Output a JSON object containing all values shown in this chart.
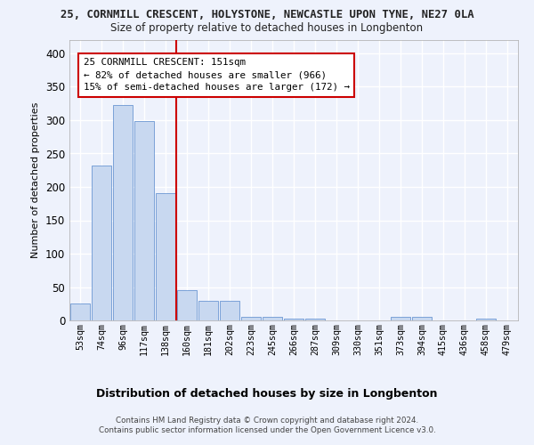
{
  "title_line1": "25, CORNMILL CRESCENT, HOLYSTONE, NEWCASTLE UPON TYNE, NE27 0LA",
  "title_line2": "Size of property relative to detached houses in Longbenton",
  "xlabel": "Distribution of detached houses by size in Longbenton",
  "ylabel": "Number of detached properties",
  "categories": [
    "53sqm",
    "74sqm",
    "96sqm",
    "117sqm",
    "138sqm",
    "160sqm",
    "181sqm",
    "202sqm",
    "223sqm",
    "245sqm",
    "266sqm",
    "287sqm",
    "309sqm",
    "330sqm",
    "351sqm",
    "373sqm",
    "394sqm",
    "415sqm",
    "436sqm",
    "458sqm",
    "479sqm"
  ],
  "values": [
    25,
    232,
    323,
    298,
    190,
    46,
    30,
    30,
    5,
    5,
    3,
    3,
    0,
    0,
    0,
    5,
    5,
    0,
    0,
    3,
    0
  ],
  "bar_color": "#c8d8f0",
  "bar_edge_color": "#5588cc",
  "vline_pos": 4.5,
  "vline_color": "#cc0000",
  "ann_line1": "25 CORNMILL CRESCENT: 151sqm",
  "ann_line2": "← 82% of detached houses are smaller (966)",
  "ann_line3": "15% of semi-detached houses are larger (172) →",
  "ann_box_fc": "#ffffff",
  "ann_box_ec": "#cc0000",
  "ylim": [
    0,
    420
  ],
  "yticks": [
    0,
    50,
    100,
    150,
    200,
    250,
    300,
    350,
    400
  ],
  "bg_color": "#eef2fc",
  "grid_color": "#ffffff",
  "footer": "Contains HM Land Registry data © Crown copyright and database right 2024.\nContains public sector information licensed under the Open Government Licence v3.0."
}
